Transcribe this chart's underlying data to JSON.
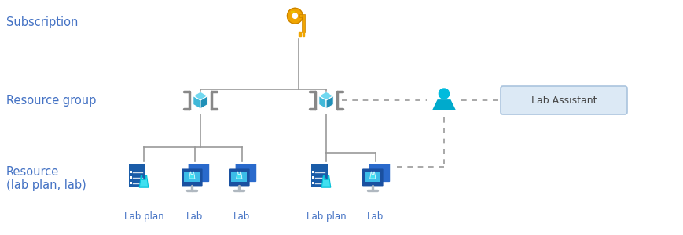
{
  "bg_color": "#ffffff",
  "title_color": "#4472C4",
  "label_color": "#4472C4",
  "line_color": "#999999",
  "dashed_color": "#999999",
  "key_gold": "#F0A500",
  "key_gold_dark": "#C88000",
  "key_gold_mid": "#E8C000",
  "rg_cube_light": "#70D8F0",
  "rg_cube_mid": "#40B8D8",
  "rg_cube_dark": "#2090B8",
  "rg_bracket": "#888888",
  "person_color": "#00AACC",
  "person_head": "#00BBDD",
  "box_fill": "#dce9f5",
  "box_edge": "#aac4de",
  "lab_doc_bg": "#1A5CA8",
  "lab_doc_mid": "#2470CC",
  "lab_mon_dark": "#1A50A0",
  "lab_mon_mid": "#2A6ACC",
  "lab_mon_screen": "#3CBCE8",
  "lab_beaker": "#40E0F0",
  "lab_beaker_outline": "#00C0D8",
  "labels": {
    "subscription": "Subscription",
    "resource_group": "Resource group",
    "resource": "Resource\n(lab plan, lab)",
    "lab_plan": "Lab plan",
    "lab": "Lab",
    "lab_assistant": "Lab Assistant"
  }
}
